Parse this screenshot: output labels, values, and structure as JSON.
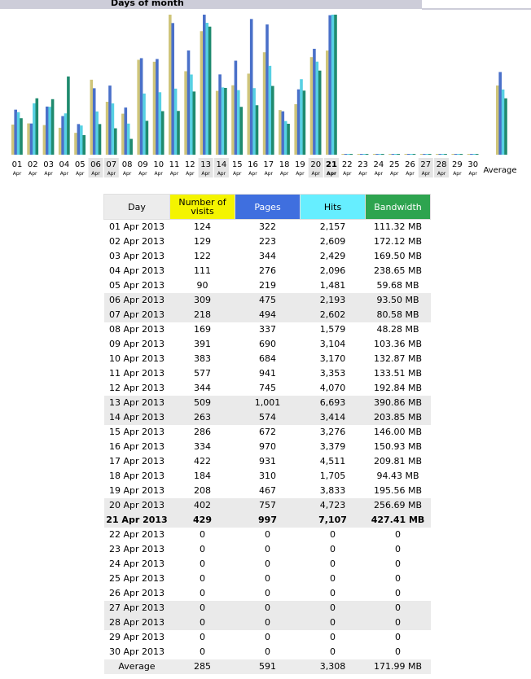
{
  "header": {
    "title": "Days of month"
  },
  "colors": {
    "visits": "#cfc57a",
    "pages": "#4a70c9",
    "hits": "#57d0e3",
    "bandwidth": "#1f8a6e",
    "visits_head": "#f4f400",
    "pages_head": "#3f6fdf",
    "hits_head": "#66eeff",
    "bandwidth_head": "#2ea44f"
  },
  "chart_data": {
    "type": "bar",
    "categories": [
      "01",
      "02",
      "03",
      "04",
      "05",
      "06",
      "07",
      "08",
      "09",
      "10",
      "11",
      "12",
      "13",
      "14",
      "15",
      "16",
      "17",
      "18",
      "19",
      "20",
      "21",
      "22",
      "23",
      "24",
      "25",
      "26",
      "27",
      "28",
      "29",
      "30",
      "Average"
    ],
    "month_labels": [
      "Apr",
      "Apr",
      "Apr",
      "Apr",
      "Apr",
      "Apr",
      "Apr",
      "Apr",
      "Apr",
      "Apr",
      "Apr",
      "Apr",
      "Apr",
      "Apr",
      "Apr",
      "Apr",
      "Apr",
      "Apr",
      "Apr",
      "Apr",
      "Apr",
      "Apr",
      "Apr",
      "Apr",
      "Apr",
      "Apr",
      "Apr",
      "Apr",
      "Apr",
      "Apr"
    ],
    "weekend_days": [
      "06",
      "07",
      "13",
      "14",
      "20",
      "21",
      "27",
      "28"
    ],
    "today": "21",
    "series": [
      {
        "key": "visits",
        "values": [
          124,
          129,
          122,
          111,
          90,
          309,
          218,
          169,
          391,
          383,
          577,
          344,
          509,
          263,
          286,
          334,
          422,
          184,
          208,
          402,
          429,
          0,
          0,
          0,
          0,
          0,
          0,
          0,
          0,
          0,
          285
        ]
      },
      {
        "key": "pages",
        "values": [
          322,
          223,
          344,
          276,
          219,
          475,
          494,
          337,
          690,
          684,
          941,
          745,
          1001,
          574,
          672,
          970,
          931,
          310,
          467,
          757,
          997,
          0,
          0,
          0,
          0,
          0,
          0,
          0,
          0,
          0,
          591
        ]
      },
      {
        "key": "hits",
        "values": [
          2157,
          2609,
          2429,
          2096,
          1481,
          2193,
          2602,
          1579,
          3104,
          3170,
          3353,
          4070,
          6693,
          3414,
          3276,
          3379,
          4511,
          1705,
          3833,
          4723,
          7107,
          0,
          0,
          0,
          0,
          0,
          0,
          0,
          0,
          0,
          3308
        ]
      },
      {
        "key": "bandwidth",
        "values": [
          111.32,
          172.12,
          169.5,
          238.65,
          59.68,
          93.5,
          80.58,
          48.28,
          103.36,
          132.87,
          133.51,
          192.84,
          390.86,
          203.85,
          146.0,
          150.93,
          209.81,
          94.43,
          195.56,
          256.69,
          427.41,
          0,
          0,
          0,
          0,
          0,
          0,
          0,
          0,
          0,
          171.99
        ]
      }
    ]
  },
  "table": {
    "headers": [
      "Day",
      "Number of visits",
      "Pages",
      "Hits",
      "Bandwidth"
    ],
    "rows": [
      [
        "01 Apr 2013",
        "124",
        "322",
        "2,157",
        "111.32 MB"
      ],
      [
        "02 Apr 2013",
        "129",
        "223",
        "2,609",
        "172.12 MB"
      ],
      [
        "03 Apr 2013",
        "122",
        "344",
        "2,429",
        "169.50 MB"
      ],
      [
        "04 Apr 2013",
        "111",
        "276",
        "2,096",
        "238.65 MB"
      ],
      [
        "05 Apr 2013",
        "90",
        "219",
        "1,481",
        "59.68 MB"
      ],
      [
        "06 Apr 2013",
        "309",
        "475",
        "2,193",
        "93.50 MB"
      ],
      [
        "07 Apr 2013",
        "218",
        "494",
        "2,602",
        "80.58 MB"
      ],
      [
        "08 Apr 2013",
        "169",
        "337",
        "1,579",
        "48.28 MB"
      ],
      [
        "09 Apr 2013",
        "391",
        "690",
        "3,104",
        "103.36 MB"
      ],
      [
        "10 Apr 2013",
        "383",
        "684",
        "3,170",
        "132.87 MB"
      ],
      [
        "11 Apr 2013",
        "577",
        "941",
        "3,353",
        "133.51 MB"
      ],
      [
        "12 Apr 2013",
        "344",
        "745",
        "4,070",
        "192.84 MB"
      ],
      [
        "13 Apr 2013",
        "509",
        "1,001",
        "6,693",
        "390.86 MB"
      ],
      [
        "14 Apr 2013",
        "263",
        "574",
        "3,414",
        "203.85 MB"
      ],
      [
        "15 Apr 2013",
        "286",
        "672",
        "3,276",
        "146.00 MB"
      ],
      [
        "16 Apr 2013",
        "334",
        "970",
        "3,379",
        "150.93 MB"
      ],
      [
        "17 Apr 2013",
        "422",
        "931",
        "4,511",
        "209.81 MB"
      ],
      [
        "18 Apr 2013",
        "184",
        "310",
        "1,705",
        "94.43 MB"
      ],
      [
        "19 Apr 2013",
        "208",
        "467",
        "3,833",
        "195.56 MB"
      ],
      [
        "20 Apr 2013",
        "402",
        "757",
        "4,723",
        "256.69 MB"
      ],
      [
        "21 Apr 2013",
        "429",
        "997",
        "7,107",
        "427.41 MB"
      ],
      [
        "22 Apr 2013",
        "0",
        "0",
        "0",
        "0"
      ],
      [
        "23 Apr 2013",
        "0",
        "0",
        "0",
        "0"
      ],
      [
        "24 Apr 2013",
        "0",
        "0",
        "0",
        "0"
      ],
      [
        "25 Apr 2013",
        "0",
        "0",
        "0",
        "0"
      ],
      [
        "26 Apr 2013",
        "0",
        "0",
        "0",
        "0"
      ],
      [
        "27 Apr 2013",
        "0",
        "0",
        "0",
        "0"
      ],
      [
        "28 Apr 2013",
        "0",
        "0",
        "0",
        "0"
      ],
      [
        "29 Apr 2013",
        "0",
        "0",
        "0",
        "0"
      ],
      [
        "30 Apr 2013",
        "0",
        "0",
        "0",
        "0"
      ],
      [
        "Average",
        "285",
        "591",
        "3,308",
        "171.99 MB"
      ]
    ]
  }
}
